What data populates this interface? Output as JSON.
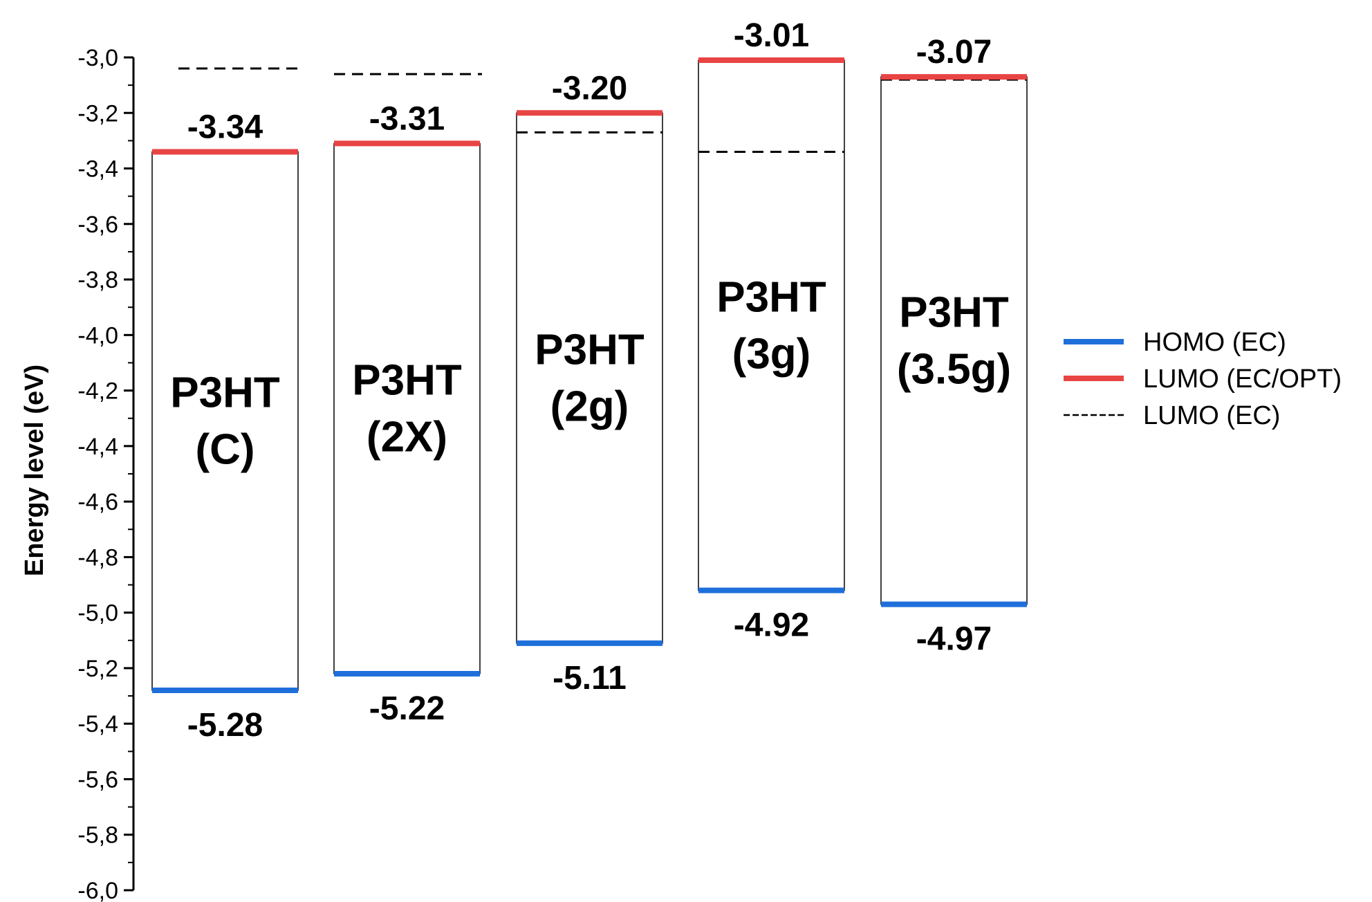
{
  "chart_data": {
    "type": "energy-level-diagram",
    "title": "",
    "ylabel": "Energy level (eV)",
    "ylim": [
      -6.0,
      -3.0
    ],
    "y_ticks": [
      "-3,0",
      "-3,2",
      "-3,4",
      "-3,6",
      "-3,8",
      "-4,0",
      "-4,2",
      "-4,4",
      "-4,6",
      "-4,8",
      "-5,0",
      "-5,2",
      "-5,4",
      "-5,6",
      "-5,8",
      "-6,0"
    ],
    "y_tick_values": [
      -3.0,
      -3.2,
      -3.4,
      -3.6,
      -3.8,
      -4.0,
      -4.2,
      -4.4,
      -4.6,
      -4.8,
      -5.0,
      -5.2,
      -5.4,
      -5.6,
      -5.8,
      -6.0
    ],
    "grid": false,
    "legend_position": "right",
    "colors": {
      "homo": "#1f6fdb",
      "lumo_opt": "#e84444",
      "lumo_ec": "#000000"
    },
    "legend": [
      {
        "label": "HOMO (EC)",
        "style": "solid",
        "color": "#1f6fdb"
      },
      {
        "label": "LUMO (EC/OPT)",
        "style": "solid",
        "color": "#e84444"
      },
      {
        "label": "LUMO (EC)",
        "style": "dashed",
        "color": "#000000"
      }
    ],
    "materials": [
      {
        "line1": "P3HT",
        "line2": "(C)",
        "homo": -5.28,
        "homo_label": "-5.28",
        "lumo_opt": -3.34,
        "lumo_opt_label": "-3.34",
        "lumo_ec": -3.04
      },
      {
        "line1": "P3HT",
        "line2": "(2X)",
        "homo": -5.22,
        "homo_label": "-5.22",
        "lumo_opt": -3.31,
        "lumo_opt_label": "-3.31",
        "lumo_ec": -3.06
      },
      {
        "line1": "P3HT",
        "line2": "(2g)",
        "homo": -5.11,
        "homo_label": "-5.11",
        "lumo_opt": -3.2,
        "lumo_opt_label": "-3.20",
        "lumo_ec": -3.27
      },
      {
        "line1": "P3HT",
        "line2": "(3g)",
        "homo": -4.92,
        "homo_label": "-4.92",
        "lumo_opt": -3.01,
        "lumo_opt_label": "-3.01",
        "lumo_ec": -3.34
      },
      {
        "line1": "P3HT",
        "line2": "(3.5g)",
        "homo": -4.97,
        "homo_label": "-4.97",
        "lumo_opt": -3.07,
        "lumo_opt_label": "-3.07",
        "lumo_ec": -3.08
      }
    ]
  }
}
